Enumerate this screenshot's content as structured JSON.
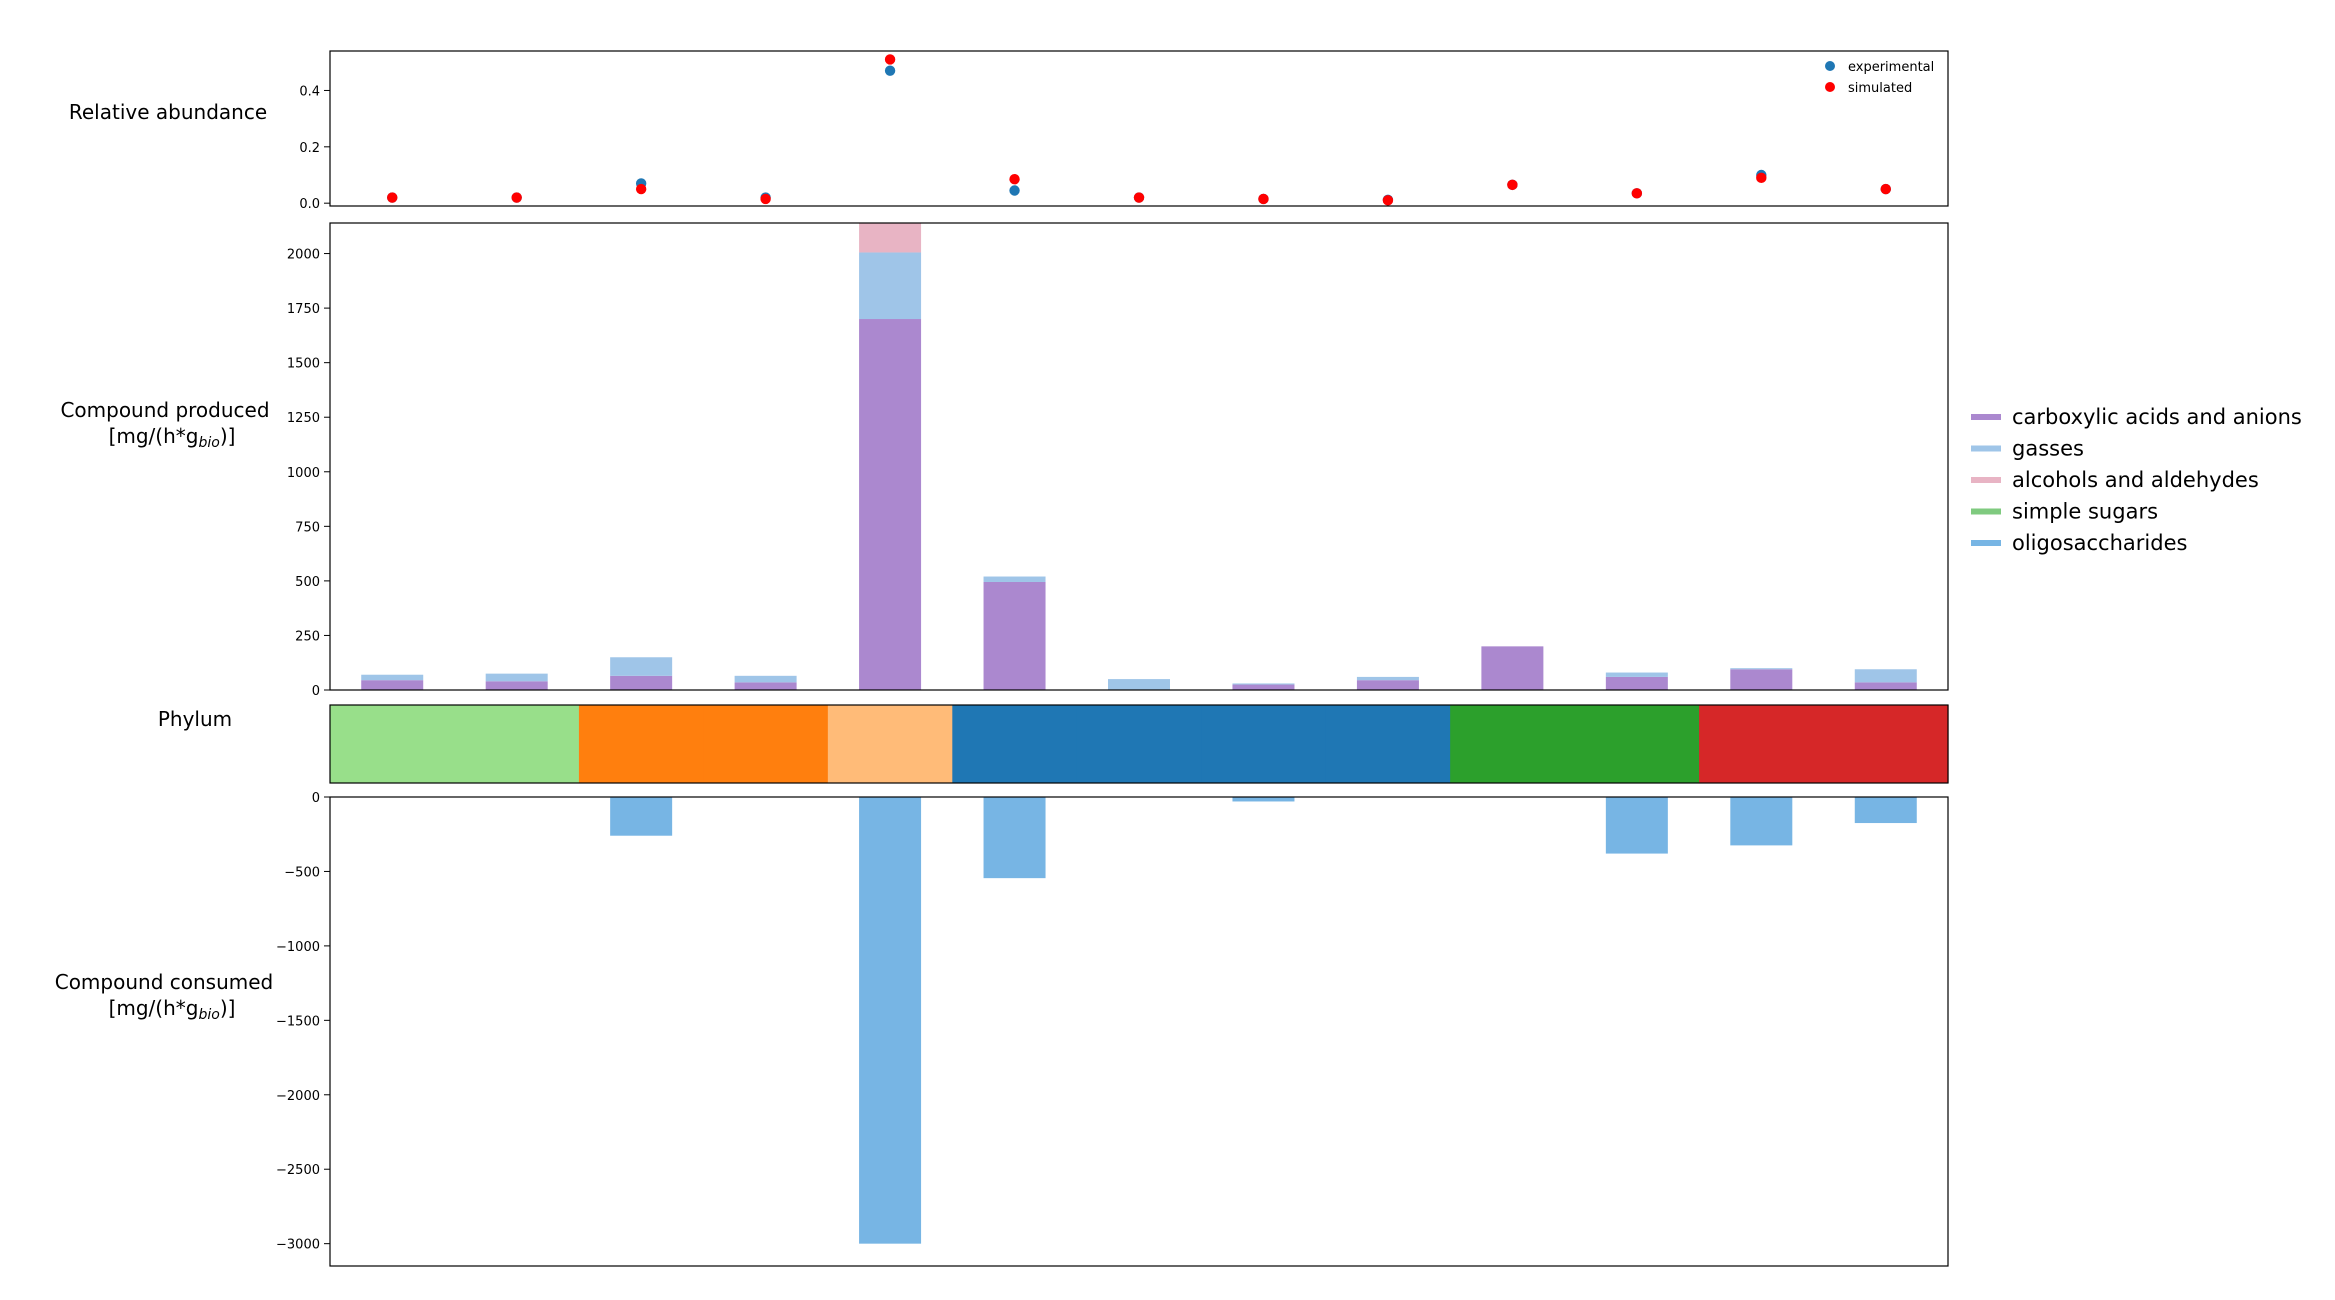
{
  "labels": {
    "relative_abundance": "Relative abundance",
    "produced_line1": "Compound produced",
    "produced_line2": "[mg/(h*g",
    "produced_sub": "bio",
    "produced_close": ")]",
    "phylum": "Phylum",
    "consumed_line1": "Compound consumed",
    "consumed_line2": "[mg/(h*g",
    "consumed_sub": "bio",
    "consumed_close": ")]"
  },
  "chart_data": [
    {
      "type": "scatter",
      "ylabel": "Relative abundance",
      "ylim": [
        -0.01,
        0.54
      ],
      "yticks": [
        "0.0",
        "0.2",
        "0.4"
      ],
      "legend_position": "top-right",
      "series": [
        {
          "name": "experimental",
          "color": "#1f77b4",
          "values": [
            0.02,
            0.02,
            0.07,
            0.02,
            0.47,
            0.045,
            0.02,
            0.015,
            0.012,
            0.065,
            0.035,
            0.1,
            0.05
          ]
        },
        {
          "name": "simulated",
          "color": "#ff0000",
          "values": [
            0.02,
            0.02,
            0.05,
            0.015,
            0.51,
            0.085,
            0.02,
            0.015,
            0.01,
            0.065,
            0.035,
            0.09,
            0.05
          ]
        }
      ]
    },
    {
      "type": "bar",
      "stacked": true,
      "ylabel": "Compound produced [mg/(h*g_bio)]",
      "ylim": [
        0,
        2140
      ],
      "yticks": [
        "0",
        "250",
        "500",
        "750",
        "1000",
        "1250",
        "1500",
        "1750",
        "2000"
      ],
      "series": [
        {
          "name": "carboxylic acids and anions",
          "color": "#ab88cf",
          "values": [
            45,
            40,
            65,
            35,
            1700,
            495,
            0,
            25,
            45,
            200,
            60,
            95,
            35
          ]
        },
        {
          "name": "gasses",
          "color": "#9fc5e8",
          "values": [
            25,
            35,
            85,
            30,
            305,
            25,
            50,
            5,
            15,
            0,
            20,
            5,
            60
          ]
        },
        {
          "name": "alcohols and aldehydes",
          "color": "#e8b4c4",
          "values": [
            0,
            0,
            0,
            0,
            135,
            0,
            0,
            0,
            0,
            0,
            0,
            0,
            0
          ]
        },
        {
          "name": "simple sugars",
          "color": "#7fca7f",
          "values": [
            0,
            0,
            0,
            0,
            0,
            0,
            0,
            0,
            0,
            0,
            0,
            0,
            0
          ]
        },
        {
          "name": "oligosaccharides",
          "color": "#77b5e4",
          "values": [
            0,
            0,
            0,
            0,
            0,
            0,
            0,
            0,
            0,
            0,
            0,
            0,
            0
          ]
        }
      ]
    },
    {
      "type": "heatmap",
      "ylabel": "Phylum",
      "colors": [
        "#98df8a",
        "#98df8a",
        "#ff7f0e",
        "#ff7f0e",
        "#ffbb78",
        "#1f77b4",
        "#1f77b4",
        "#1f77b4",
        "#1f77b4",
        "#2ca02c",
        "#2ca02c",
        "#d62728",
        "#d62728"
      ]
    },
    {
      "type": "bar",
      "ylabel": "Compound consumed [mg/(h*g_bio)]",
      "ylim": [
        -3150,
        0
      ],
      "yticks": [
        "−3000",
        "−2500",
        "−2000",
        "−1500",
        "−1000",
        "−500",
        "0"
      ],
      "series": [
        {
          "name": "oligosaccharides",
          "color": "#77b5e4",
          "values": [
            0,
            0,
            -260,
            0,
            -3000,
            -545,
            0,
            -30,
            0,
            0,
            -380,
            -325,
            -175
          ]
        }
      ]
    }
  ],
  "legend": {
    "items": [
      {
        "label": "carboxylic acids and anions",
        "color": "#ab88cf"
      },
      {
        "label": "gasses",
        "color": "#9fc5e8"
      },
      {
        "label": "alcohols and aldehydes",
        "color": "#e8b4c4"
      },
      {
        "label": "simple sugars",
        "color": "#7fca7f"
      },
      {
        "label": "oligosaccharides",
        "color": "#77b5e4"
      }
    ]
  }
}
